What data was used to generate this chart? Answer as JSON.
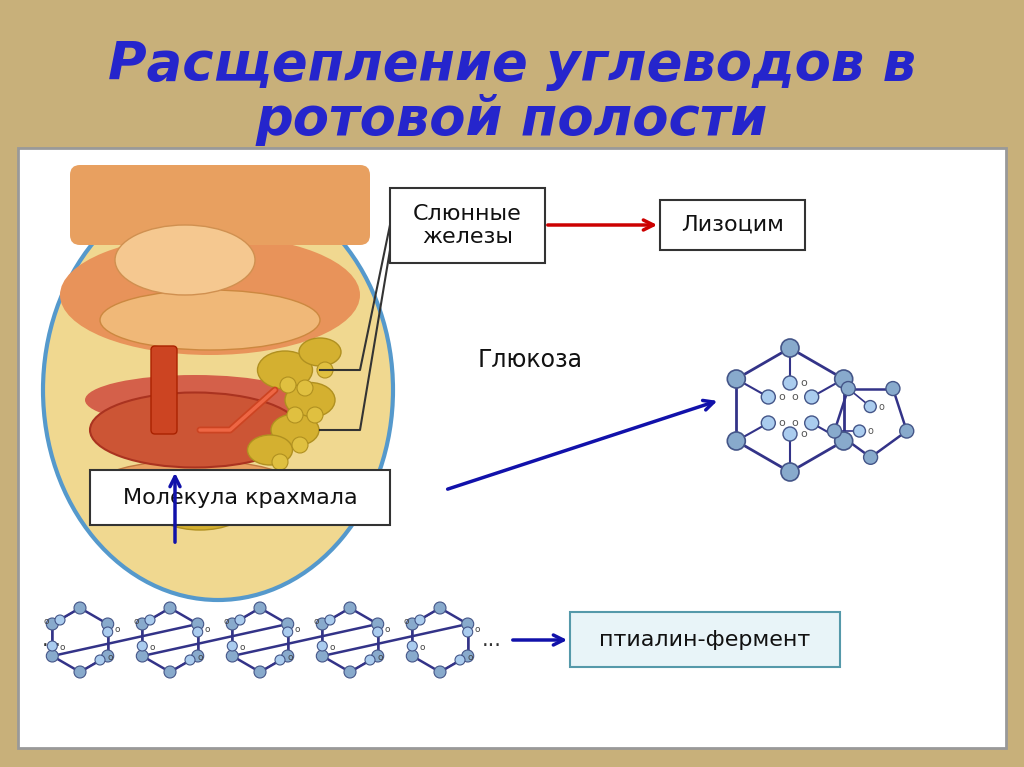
{
  "title_line1": "Расщепление углеводов в",
  "title_line2": "ротовой полости",
  "title_color": "#2525cc",
  "title_fontsize": 38,
  "bg_color": "#c8b07a",
  "panel_bg": "#ffffff",
  "panel_border": "#aaaaaa",
  "label_slyunnye": "Слюнные\nжелезы",
  "label_lizocim": "Лизоцим",
  "label_glyukoza": "Глюкоза",
  "label_molekula": "Молекула крахмала",
  "label_ptialin": "птиалин-фермент",
  "arrow_red": "#cc0000",
  "arrow_blue": "#1111aa",
  "box_light_blue_bg": "#e8f4f8",
  "text_fontsize": 16
}
